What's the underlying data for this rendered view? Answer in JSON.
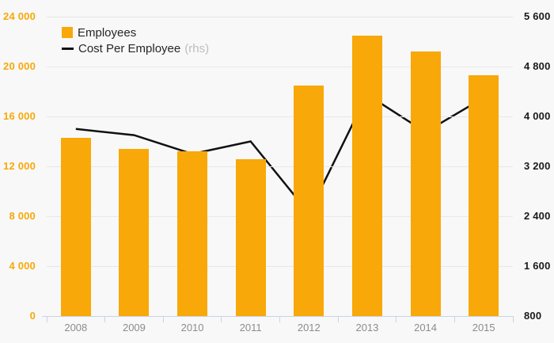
{
  "legend": {
    "employees_label": "Employees",
    "cost_label": "Cost Per Employee",
    "cost_suffix": "(rhs)"
  },
  "colors": {
    "bar": "#F8A808",
    "line": "#111111",
    "background": "#F8F8F8",
    "gridline": "#E8E8E8",
    "axis_line": "#C9D3E6",
    "left_tick_label": "#F8A808",
    "right_tick_label": "#1A1A1A",
    "x_tick_label": "#8C8C8C",
    "legend_text": "#262626",
    "rhs_text": "#BDBDBD"
  },
  "chart_data": {
    "type": "bar",
    "subtype": "bar-line-combo",
    "title": "",
    "categories": [
      "2008",
      "2009",
      "2010",
      "2011",
      "2012",
      "2013",
      "2014",
      "2015"
    ],
    "series": [
      {
        "name": "Employees",
        "type": "bar",
        "axis": "left",
        "color": "#F8A808",
        "values": [
          14300,
          13400,
          13200,
          12600,
          18500,
          22500,
          21200,
          19300
        ]
      },
      {
        "name": "Cost Per Employee (rhs)",
        "type": "line",
        "axis": "right",
        "color": "#111111",
        "values": [
          3800,
          3700,
          3400,
          3600,
          2450,
          4350,
          3750,
          4300
        ]
      }
    ],
    "left_axis": {
      "min": 0,
      "max": 24000,
      "step": 4000,
      "labels": [
        "0",
        "4 000",
        "8 000",
        "12 000",
        "16 000",
        "20 000",
        "24 000"
      ]
    },
    "right_axis": {
      "min": 800,
      "max": 5600,
      "step": 800,
      "labels": [
        "800",
        "1 600",
        "2 400",
        "3 200",
        "4 000",
        "4 800",
        "5 600"
      ]
    },
    "grid": true,
    "legend_position": "top-left"
  }
}
